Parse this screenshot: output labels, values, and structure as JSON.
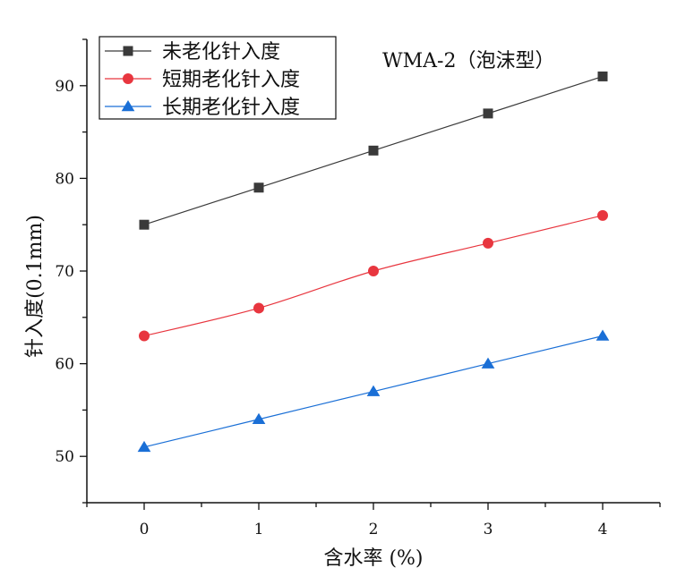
{
  "chart_data": {
    "type": "line",
    "title": "WMA-2（泡沫型）",
    "xlabel": "含水率 (%)",
    "ylabel": "针入度(0.1mm)",
    "x": [
      0,
      1,
      2,
      3,
      4
    ],
    "x_ticks": [
      "0",
      "1",
      "2",
      "3",
      "4"
    ],
    "xlim": [
      -0.5,
      4.5
    ],
    "y_ticks": [
      "50",
      "60",
      "70",
      "80",
      "90"
    ],
    "ylim": [
      45,
      95
    ],
    "grid": false,
    "legend_position": "top-left",
    "series": [
      {
        "name": "未老化针入度",
        "values": [
          75,
          79,
          83,
          87,
          91
        ],
        "color": "#3a3a3a",
        "marker": "square"
      },
      {
        "name": "短期老化针入度",
        "values": [
          63,
          66,
          70,
          73,
          76
        ],
        "color": "#e8363f",
        "marker": "circle"
      },
      {
        "name": "长期老化针入度",
        "values": [
          51,
          54,
          57,
          60,
          63
        ],
        "color": "#1a6fd6",
        "marker": "triangle"
      }
    ]
  }
}
